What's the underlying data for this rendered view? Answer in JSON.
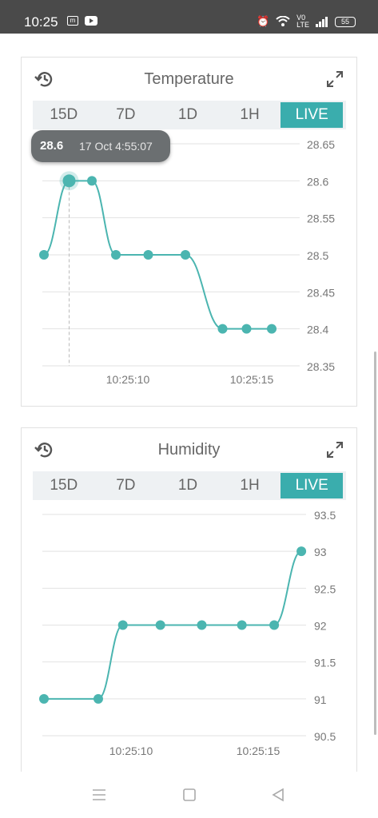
{
  "status_bar": {
    "time": "10:25",
    "battery": "55"
  },
  "colors": {
    "accent": "#3aadad",
    "line": "#4bb5b0",
    "tooltip_bg": "#6b6f71"
  },
  "temperature": {
    "title": "Temperature",
    "tabs": [
      "15D",
      "7D",
      "1D",
      "1H",
      "LIVE"
    ],
    "active_tab": "LIVE",
    "tooltip": {
      "value": "28.6",
      "time": "17 Oct 4:55:07"
    },
    "chart_data": {
      "type": "line",
      "x_ticks": [
        "10:25:10",
        "10:25:15"
      ],
      "y_ticks": [
        "28.65",
        "28.6",
        "28.55",
        "28.5",
        "28.45",
        "28.4",
        "28.35"
      ],
      "ylim": [
        28.35,
        28.65
      ],
      "x_range": [
        7,
        17.2
      ],
      "x": [
        7.0,
        8.05,
        9.0,
        10.0,
        11.35,
        12.9,
        14.45,
        15.45,
        16.5
      ],
      "values": [
        28.5,
        28.6,
        28.6,
        28.5,
        28.5,
        28.5,
        28.4,
        28.4,
        28.4
      ],
      "highlight_index": 1
    }
  },
  "humidity": {
    "title": "Humidity",
    "tabs": [
      "15D",
      "7D",
      "1D",
      "1H",
      "LIVE"
    ],
    "active_tab": "LIVE",
    "chart_data": {
      "type": "line",
      "x_ticks": [
        "10:25:10",
        "10:25:15"
      ],
      "y_ticks": [
        "93.5",
        "93",
        "92.5",
        "92",
        "91.5",
        "91",
        "90.5"
      ],
      "ylim": [
        90.5,
        93.5
      ],
      "x_range": [
        7,
        16.7
      ],
      "x": [
        7.0,
        9.1,
        10.05,
        11.5,
        13.1,
        14.65,
        15.9,
        16.95
      ],
      "values": [
        91,
        91,
        92,
        92,
        92,
        92,
        92,
        93
      ]
    }
  }
}
